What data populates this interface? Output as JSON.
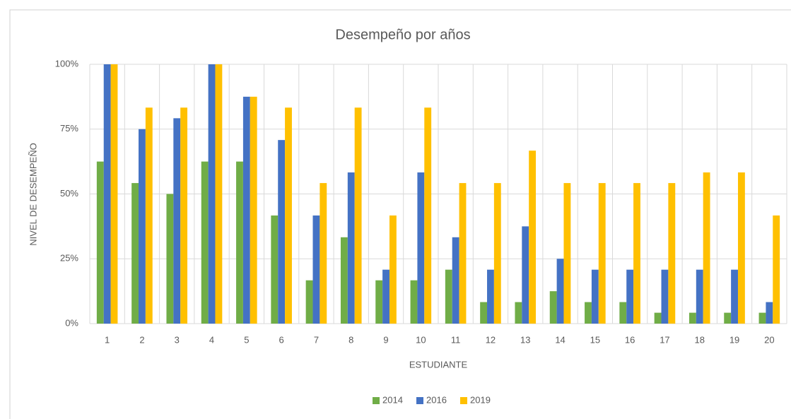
{
  "chart_data": {
    "type": "bar",
    "title": "Desempeño por años",
    "x_label": "ESTUDIANTE",
    "y_label": "NIVEL DE DESEMPEÑO",
    "categories": [
      "1",
      "2",
      "3",
      "4",
      "5",
      "6",
      "7",
      "8",
      "9",
      "10",
      "11",
      "12",
      "13",
      "14",
      "15",
      "16",
      "17",
      "18",
      "19",
      "20"
    ],
    "series": [
      {
        "name": "2014",
        "color": "#70ad47",
        "values": [
          62.5,
          54.2,
          50,
          62.5,
          62.5,
          41.7,
          16.7,
          33.3,
          16.7,
          16.7,
          20.8,
          8.3,
          8.3,
          12.5,
          8.3,
          8.3,
          4.2,
          4.2,
          4.2,
          4.2
        ]
      },
      {
        "name": "2016",
        "color": "#4472c4",
        "values": [
          100,
          75,
          79.2,
          100,
          87.5,
          70.8,
          41.7,
          58.3,
          20.8,
          58.3,
          33.3,
          20.8,
          37.5,
          25,
          20.8,
          20.8,
          20.8,
          20.8,
          20.8,
          8.3
        ]
      },
      {
        "name": "2019",
        "color": "#ffc000",
        "values": [
          100,
          83.3,
          83.3,
          100,
          87.5,
          83.3,
          54.2,
          83.3,
          41.7,
          83.3,
          54.2,
          54.2,
          66.7,
          54.2,
          54.2,
          54.2,
          54.2,
          58.3,
          58.3,
          41.7
        ]
      }
    ],
    "ylim": [
      0,
      100
    ],
    "yticks": [
      {
        "value": 0,
        "label": "0%"
      },
      {
        "value": 25,
        "label": "25%"
      },
      {
        "value": 50,
        "label": "50%"
      },
      {
        "value": 75,
        "label": "75%"
      },
      {
        "value": 100,
        "label": "100%"
      }
    ],
    "grid": true,
    "legend": "bottom"
  }
}
